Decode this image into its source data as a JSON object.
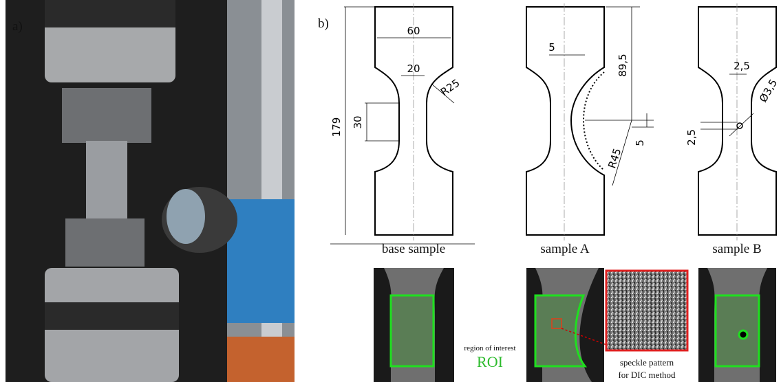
{
  "panel_labels": [
    "a)",
    "b)"
  ],
  "samples": [
    "base sample",
    "sample A",
    "sample B"
  ],
  "dimensions": {
    "base": [
      "60",
      "20",
      "R25",
      "30",
      "179"
    ],
    "sample_a": [
      "5",
      "89,5",
      "R45",
      "5"
    ],
    "sample_b": [
      "2,5",
      "Ø3,5",
      "2,5"
    ]
  },
  "roi": {
    "caption": "region of interest",
    "label": "ROI"
  },
  "speckle": [
    "speckle pattern",
    "for DIC method"
  ]
}
